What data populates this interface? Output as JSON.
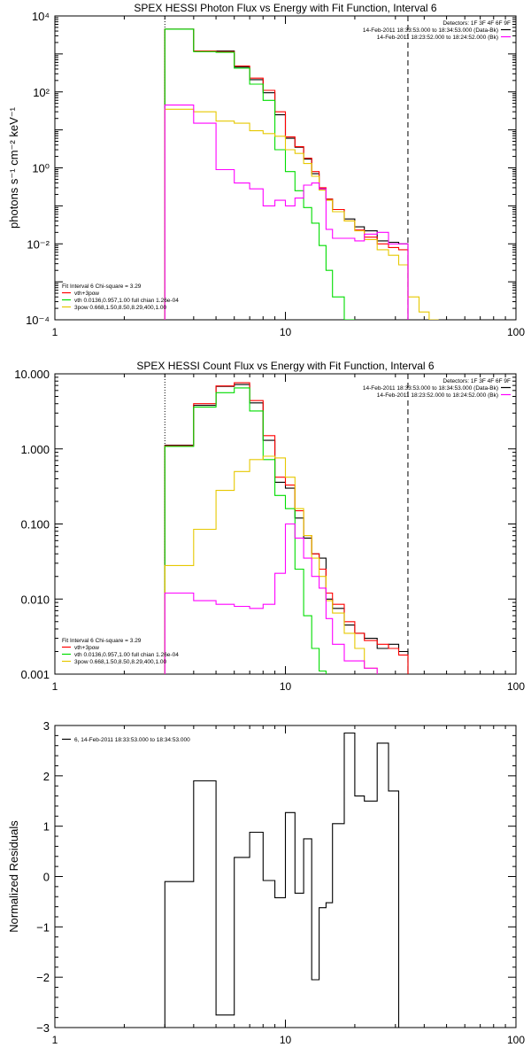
{
  "chart_data": [
    {
      "type": "line",
      "title": "SPEX HESSI Photon Flux vs Energy with Fit Function, Interval 6",
      "ylabel": "photons s⁻¹ cm⁻² keV⁻¹",
      "xscale": "log",
      "yscale": "log",
      "xlim": [
        1,
        100
      ],
      "ylim": [
        0.0001,
        10000
      ],
      "xticks": [
        1,
        10,
        100
      ],
      "xtick_labels": [
        "1",
        "10",
        "100"
      ],
      "yticks": [
        0.0001,
        0.01,
        1,
        100,
        10000
      ],
      "ytick_labels": [
        "10⁻⁴",
        "10⁻²",
        "10⁰",
        "10²",
        "10⁴"
      ],
      "vlines": [
        {
          "x": 3.0,
          "style": "dotted"
        },
        {
          "x": 34,
          "style": "dashed"
        }
      ],
      "legend_right": [
        {
          "label": "Detectors: 1F 3F 4F 6F 9F",
          "color": ""
        },
        {
          "label": "14-Feb-2011 18:33:53.000 to 18:34:53.000 (Data-Bk)",
          "color": "#000000"
        },
        {
          "label": "14-Feb-2011 18:23:52.000 to 18:24:52.000 (Bk)",
          "color": "#ff00ff"
        }
      ],
      "legend_left": [
        {
          "label": "Fit Interval  6    Chi-square = 3.29",
          "color": ""
        },
        {
          "label": "vth+3pow",
          "color": "#ff0000"
        },
        {
          "label": "vth 0.0136,0.957,1.00  full chian 1.26e-04",
          "color": "#00dd00"
        },
        {
          "label": "3pow 0.668,1.50,8.50,8.29,400,1.00",
          "color": "#e6c800"
        }
      ],
      "series": [
        {
          "name": "Data-Bk",
          "color": "#000000",
          "edges": [
            3.0,
            4.0,
            5.0,
            6.0,
            7.0,
            8.0,
            9.0,
            10.0,
            11.0,
            12.0,
            13.0,
            14.0,
            15.0,
            16.0,
            18.0,
            20.0,
            22.0,
            25.0,
            28.0,
            31.0,
            34.0
          ],
          "values": [
            4500,
            1200,
            1200,
            450,
            210,
            95,
            25,
            6,
            3.5,
            1.7,
            0.7,
            0.28,
            0.15,
            0.08,
            0.045,
            0.028,
            0.022,
            0.012,
            0.011,
            0.01
          ]
        },
        {
          "name": "vth+3pow",
          "color": "#ff0000",
          "edges": [
            3.0,
            4.0,
            5.0,
            6.0,
            7.0,
            8.0,
            9.0,
            10.0,
            11.0,
            12.0,
            13.0,
            14.0,
            15.0,
            16.0,
            18.0,
            20.0,
            22.0,
            25.0,
            28.0,
            31.0,
            34.0
          ],
          "values": [
            4500,
            1200,
            1150,
            480,
            230,
            110,
            30,
            6.5,
            3.6,
            1.8,
            0.8,
            0.3,
            0.15,
            0.08,
            0.04,
            0.023,
            0.015,
            0.01,
            0.008,
            0.007
          ]
        },
        {
          "name": "vth",
          "color": "#00dd00",
          "edges": [
            3.0,
            4.0,
            5.0,
            6.0,
            7.0,
            8.0,
            9.0,
            10.0,
            11.0,
            12.0,
            13.0,
            14.0,
            15.0,
            16.0,
            18.0,
            20.0
          ],
          "values": [
            4500,
            1150,
            1100,
            420,
            160,
            60,
            3,
            0.8,
            0.25,
            0.09,
            0.035,
            0.009,
            0.002,
            0.0004,
            0.0001
          ]
        },
        {
          "name": "3pow",
          "color": "#e6c800",
          "edges": [
            3.0,
            4.0,
            5.0,
            6.0,
            7.0,
            8.0,
            9.0,
            10.0,
            11.0,
            12.0,
            13.0,
            14.0,
            15.0,
            16.0,
            18.0,
            20.0,
            22.0,
            25.0,
            28.0,
            31.0,
            34.0,
            38.0,
            42.0,
            46.0
          ],
          "values": [
            35,
            30,
            17,
            15,
            9.5,
            8,
            6.8,
            3,
            2.4,
            1.3,
            0.6,
            0.26,
            0.14,
            0.07,
            0.04,
            0.022,
            0.013,
            0.007,
            0.005,
            0.0028,
            0.0004,
            0.00016,
            0.0001
          ]
        },
        {
          "name": "Bk",
          "color": "#ff00ff",
          "edges": [
            3.0,
            4.0,
            5.0,
            6.0,
            7.0,
            8.0,
            9.0,
            10.0,
            11.0,
            12.0,
            13.0,
            14.0,
            15.0,
            16.0,
            18.0,
            20.0,
            22.0,
            25.0,
            28.0,
            31.0,
            34.0
          ],
          "values": [
            45,
            15,
            0.9,
            0.4,
            0.28,
            0.1,
            0.14,
            0.1,
            0.16,
            0.35,
            0.4,
            0.28,
            0.024,
            0.014,
            0.014,
            0.012,
            0.018,
            0.02,
            0.01,
            0.01
          ]
        }
      ]
    },
    {
      "type": "line",
      "title": "SPEX HESSI Count Flux vs Energy with Fit Function, Interval 6",
      "ylabel": "",
      "xscale": "log",
      "yscale": "log",
      "xlim": [
        1,
        100
      ],
      "ylim": [
        0.001,
        10
      ],
      "xticks": [
        1,
        10,
        100
      ],
      "xtick_labels": [
        "1",
        "10",
        "100"
      ],
      "yticks": [
        0.001,
        0.01,
        0.1,
        1,
        10
      ],
      "ytick_labels": [
        "0.001",
        "0.010",
        "0.100",
        "1.000",
        "10.000"
      ],
      "vlines": [
        {
          "x": 3.0,
          "style": "dotted"
        },
        {
          "x": 34,
          "style": "dashed"
        }
      ],
      "legend_right": [
        {
          "label": "Detectors: 1F 3F 4F 6F 9F",
          "color": ""
        },
        {
          "label": "14-Feb-2011 18:33:53.000 to 18:34:53.000 (Data-Bk)",
          "color": "#000000"
        },
        {
          "label": "14-Feb-2011 18:23:52.000 to 18:24:52.000 (Bk)",
          "color": "#ff00ff"
        }
      ],
      "legend_left": [
        {
          "label": "Fit Interval  6    Chi-square = 3.29",
          "color": ""
        },
        {
          "label": "vth+3pow",
          "color": "#ff0000"
        },
        {
          "label": "vth 0.0136,0.957,1.00  full chian 1.26e-04",
          "color": "#00dd00"
        },
        {
          "label": "3pow 0.668,1.50,8.50,8.29,400,1.00",
          "color": "#e6c800"
        }
      ],
      "series": [
        {
          "name": "Data-Bk",
          "color": "#000000",
          "edges": [
            3.0,
            4.0,
            5.0,
            6.0,
            7.0,
            8.0,
            9.0,
            10.0,
            11.0,
            12.0,
            13.0,
            14.0,
            15.0,
            16.0,
            18.0,
            20.0,
            22.0,
            25.0,
            28.0,
            31.0,
            34.0
          ],
          "values": [
            1.12,
            3.8,
            6.8,
            7.2,
            4.1,
            1.3,
            0.36,
            0.3,
            0.12,
            0.065,
            0.04,
            0.035,
            0.01,
            0.0075,
            0.0045,
            0.0035,
            0.003,
            0.0022,
            0.0025,
            0.002
          ]
        },
        {
          "name": "vth+3pow",
          "color": "#ff0000",
          "edges": [
            3.0,
            4.0,
            5.0,
            6.0,
            7.0,
            8.0,
            9.0,
            10.0,
            11.0,
            12.0,
            13.0,
            14.0,
            15.0,
            16.0,
            18.0,
            20.0,
            22.0,
            25.0,
            28.0,
            31.0,
            34.0
          ],
          "values": [
            1.1,
            4.0,
            6.9,
            7.6,
            4.4,
            1.5,
            0.42,
            0.33,
            0.15,
            0.07,
            0.04,
            0.025,
            0.012,
            0.0085,
            0.005,
            0.0035,
            0.0028,
            0.0025,
            0.0022,
            0.0018
          ]
        },
        {
          "name": "vth",
          "color": "#00dd00",
          "edges": [
            3.0,
            4.0,
            5.0,
            6.0,
            7.0,
            8.0,
            9.0,
            10.0,
            11.0,
            12.0,
            13.0,
            14.0,
            15.0,
            16.0
          ],
          "values": [
            1.08,
            3.6,
            5.6,
            6.5,
            3.2,
            0.72,
            0.24,
            0.16,
            0.025,
            0.006,
            0.0022,
            0.0011,
            0.0008
          ]
        },
        {
          "name": "3pow",
          "color": "#e6c800",
          "edges": [
            3.0,
            4.0,
            5.0,
            6.0,
            7.0,
            8.0,
            9.0,
            10.0,
            11.0,
            12.0,
            13.0,
            14.0,
            15.0,
            16.0,
            18.0,
            20.0,
            22.0,
            25.0,
            28.0
          ],
          "values": [
            0.028,
            0.085,
            0.28,
            0.5,
            0.72,
            0.8,
            0.76,
            0.42,
            0.16,
            0.07,
            0.035,
            0.02,
            0.0095,
            0.0065,
            0.0035,
            0.0022,
            0.0012,
            0.0008
          ]
        },
        {
          "name": "Bk",
          "color": "#ff00ff",
          "edges": [
            3.0,
            4.0,
            5.0,
            6.0,
            7.0,
            8.0,
            9.0,
            10.0,
            11.0,
            12.0,
            13.0,
            14.0,
            15.0,
            16.0,
            18.0,
            20.0,
            22.0,
            25.0,
            28.0,
            31.0,
            34.0
          ],
          "values": [
            0.012,
            0.0095,
            0.0085,
            0.008,
            0.0075,
            0.0085,
            0.022,
            0.1,
            0.065,
            0.035,
            0.02,
            0.014,
            0.0055,
            0.0025,
            0.0015,
            0.0015,
            0.0012,
            0.0008,
            0.0009,
            0.0008
          ]
        }
      ]
    },
    {
      "type": "line",
      "title": "",
      "ylabel": "Normalized Residuals",
      "xscale": "log",
      "yscale": "linear",
      "xlim": [
        1,
        100
      ],
      "ylim": [
        -3,
        3
      ],
      "xticks": [
        1,
        10,
        100
      ],
      "xtick_labels": [
        "1",
        "10",
        "100"
      ],
      "yticks": [
        -3,
        -2,
        -1,
        0,
        1,
        2,
        3
      ],
      "ytick_labels": [
        "−3",
        "−2",
        "−1",
        "0",
        "1",
        "2",
        "3"
      ],
      "vlines": [],
      "legend_right": [],
      "legend_left": [
        {
          "label": "6, 14-Feb-2011 18:33:53.000 to 18:34:53.000",
          "color": "#000000"
        }
      ],
      "series": [
        {
          "name": "6, 14-Feb-2011 18:33:53.000 to 18:34:53.000",
          "color": "#000000",
          "edges": [
            3.0,
            4.0,
            5.0,
            6.0,
            7.0,
            8.0,
            9.0,
            10.0,
            11.0,
            12.0,
            13.0,
            14.0,
            15.0,
            16.0,
            18.0,
            20.0,
            22.0,
            25.0,
            28.0,
            31.0,
            34.0
          ],
          "values": [
            -0.1,
            1.9,
            -2.75,
            0.38,
            0.88,
            -0.08,
            -0.42,
            1.27,
            -0.33,
            0.75,
            -2.05,
            -0.62,
            -0.52,
            1.05,
            2.85,
            1.6,
            1.5,
            2.65,
            1.7,
            -3.2
          ]
        }
      ]
    }
  ]
}
